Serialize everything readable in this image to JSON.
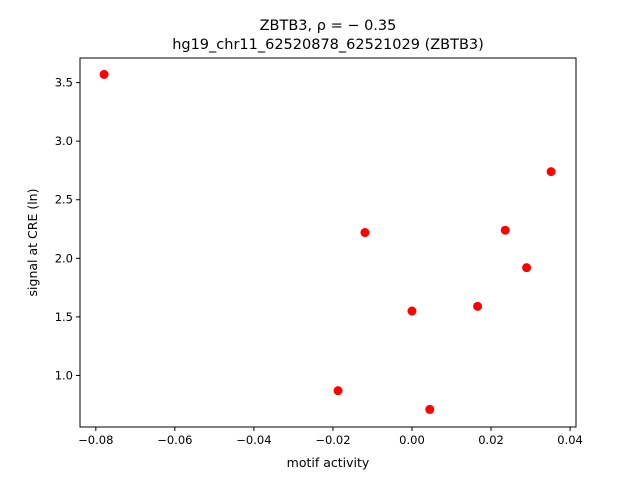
{
  "chart_data": {
    "type": "scatter",
    "title_line1": "ZBTB3, ρ = − 0.35",
    "title_line2": "hg19_chr11_62520878_62521029 (ZBTB3)",
    "xlabel": "motif activity",
    "ylabel": "signal at CRE (ln)",
    "xlim": [
      -0.084,
      0.0415
    ],
    "ylim": [
      0.56,
      3.71
    ],
    "xticks": [
      -0.08,
      -0.06,
      -0.04,
      -0.02,
      0.0,
      0.02,
      0.04
    ],
    "xtick_labels": [
      "−0.08",
      "−0.06",
      "−0.04",
      "−0.02",
      "0.00",
      "0.02",
      "0.04"
    ],
    "yticks": [
      1.0,
      1.5,
      2.0,
      2.5,
      3.0,
      3.5
    ],
    "ytick_labels": [
      "1.0",
      "1.5",
      "2.0",
      "2.5",
      "3.0",
      "3.5"
    ],
    "grid": false,
    "point_color": "#ff0000",
    "x": [
      -0.0779,
      -0.0187,
      -0.0119,
      0.0,
      0.0045,
      0.0166,
      0.0236,
      0.029,
      0.0352
    ],
    "y": [
      3.57,
      0.87,
      2.22,
      1.55,
      0.71,
      1.59,
      2.24,
      1.92,
      2.74
    ]
  }
}
